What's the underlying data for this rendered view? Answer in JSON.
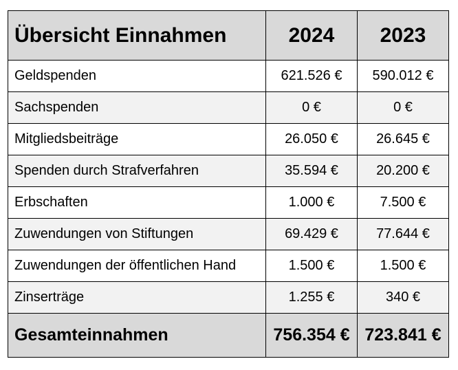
{
  "table": {
    "title": "Übersicht Einnahmen",
    "columns": [
      "2024",
      "2023"
    ],
    "rows": [
      {
        "label": "Geldspenden",
        "v2024": "621.526 €",
        "v2023": "590.012 €"
      },
      {
        "label": "Sachspenden",
        "v2024": "0 €",
        "v2023": "0 €"
      },
      {
        "label": "Mitgliedsbeiträge",
        "v2024": "26.050 €",
        "v2023": "26.645 €"
      },
      {
        "label": "Spenden durch Strafverfahren",
        "v2024": "35.594 €",
        "v2023": "20.200 €"
      },
      {
        "label": "Erbschaften",
        "v2024": "1.000 €",
        "v2023": "7.500 €"
      },
      {
        "label": "Zuwendungen von Stiftungen",
        "v2024": "69.429 €",
        "v2023": "77.644 €"
      },
      {
        "label": "Zuwendungen der öffentlichen Hand",
        "v2024": "1.500 €",
        "v2023": "1.500 €"
      },
      {
        "label": "Zinserträge",
        "v2024": "1.255 €",
        "v2023": "340 €"
      }
    ],
    "total": {
      "label": "Gesamteinnahmen",
      "v2024": "756.354 €",
      "v2023": "723.841 €"
    },
    "colors": {
      "header_bg": "#d9d9d9",
      "row_alt_bg": "#f2f2f2",
      "row_bg": "#ffffff",
      "border": "#000000"
    }
  }
}
